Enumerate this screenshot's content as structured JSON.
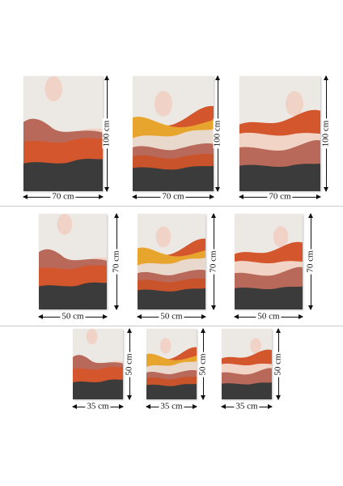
{
  "palette": {
    "sky": "#ece8e3",
    "sun": "#f1d2c6",
    "peach": "#f2d4c7",
    "cream": "#e9d8cc",
    "brown": "#b8695a",
    "orange": "#d4562d",
    "burnt": "#c9532a",
    "yellow": "#e8a52e",
    "charcoal": "#3b3b3b"
  },
  "variants": [
    "design-1",
    "design-2",
    "design-3"
  ],
  "rows": [
    {
      "name": "large",
      "width_label": "70 cm",
      "height_label": "100 cm",
      "prints": [
        "design-1",
        "design-2",
        "design-3"
      ]
    },
    {
      "name": "medium",
      "width_label": "50 cm",
      "height_label": "70 cm",
      "prints": [
        "design-1",
        "design-2",
        "design-3"
      ]
    },
    {
      "name": "small",
      "width_label": "35 cm",
      "height_label": "50 cm",
      "prints": [
        "design-1",
        "design-2",
        "design-3"
      ]
    }
  ]
}
